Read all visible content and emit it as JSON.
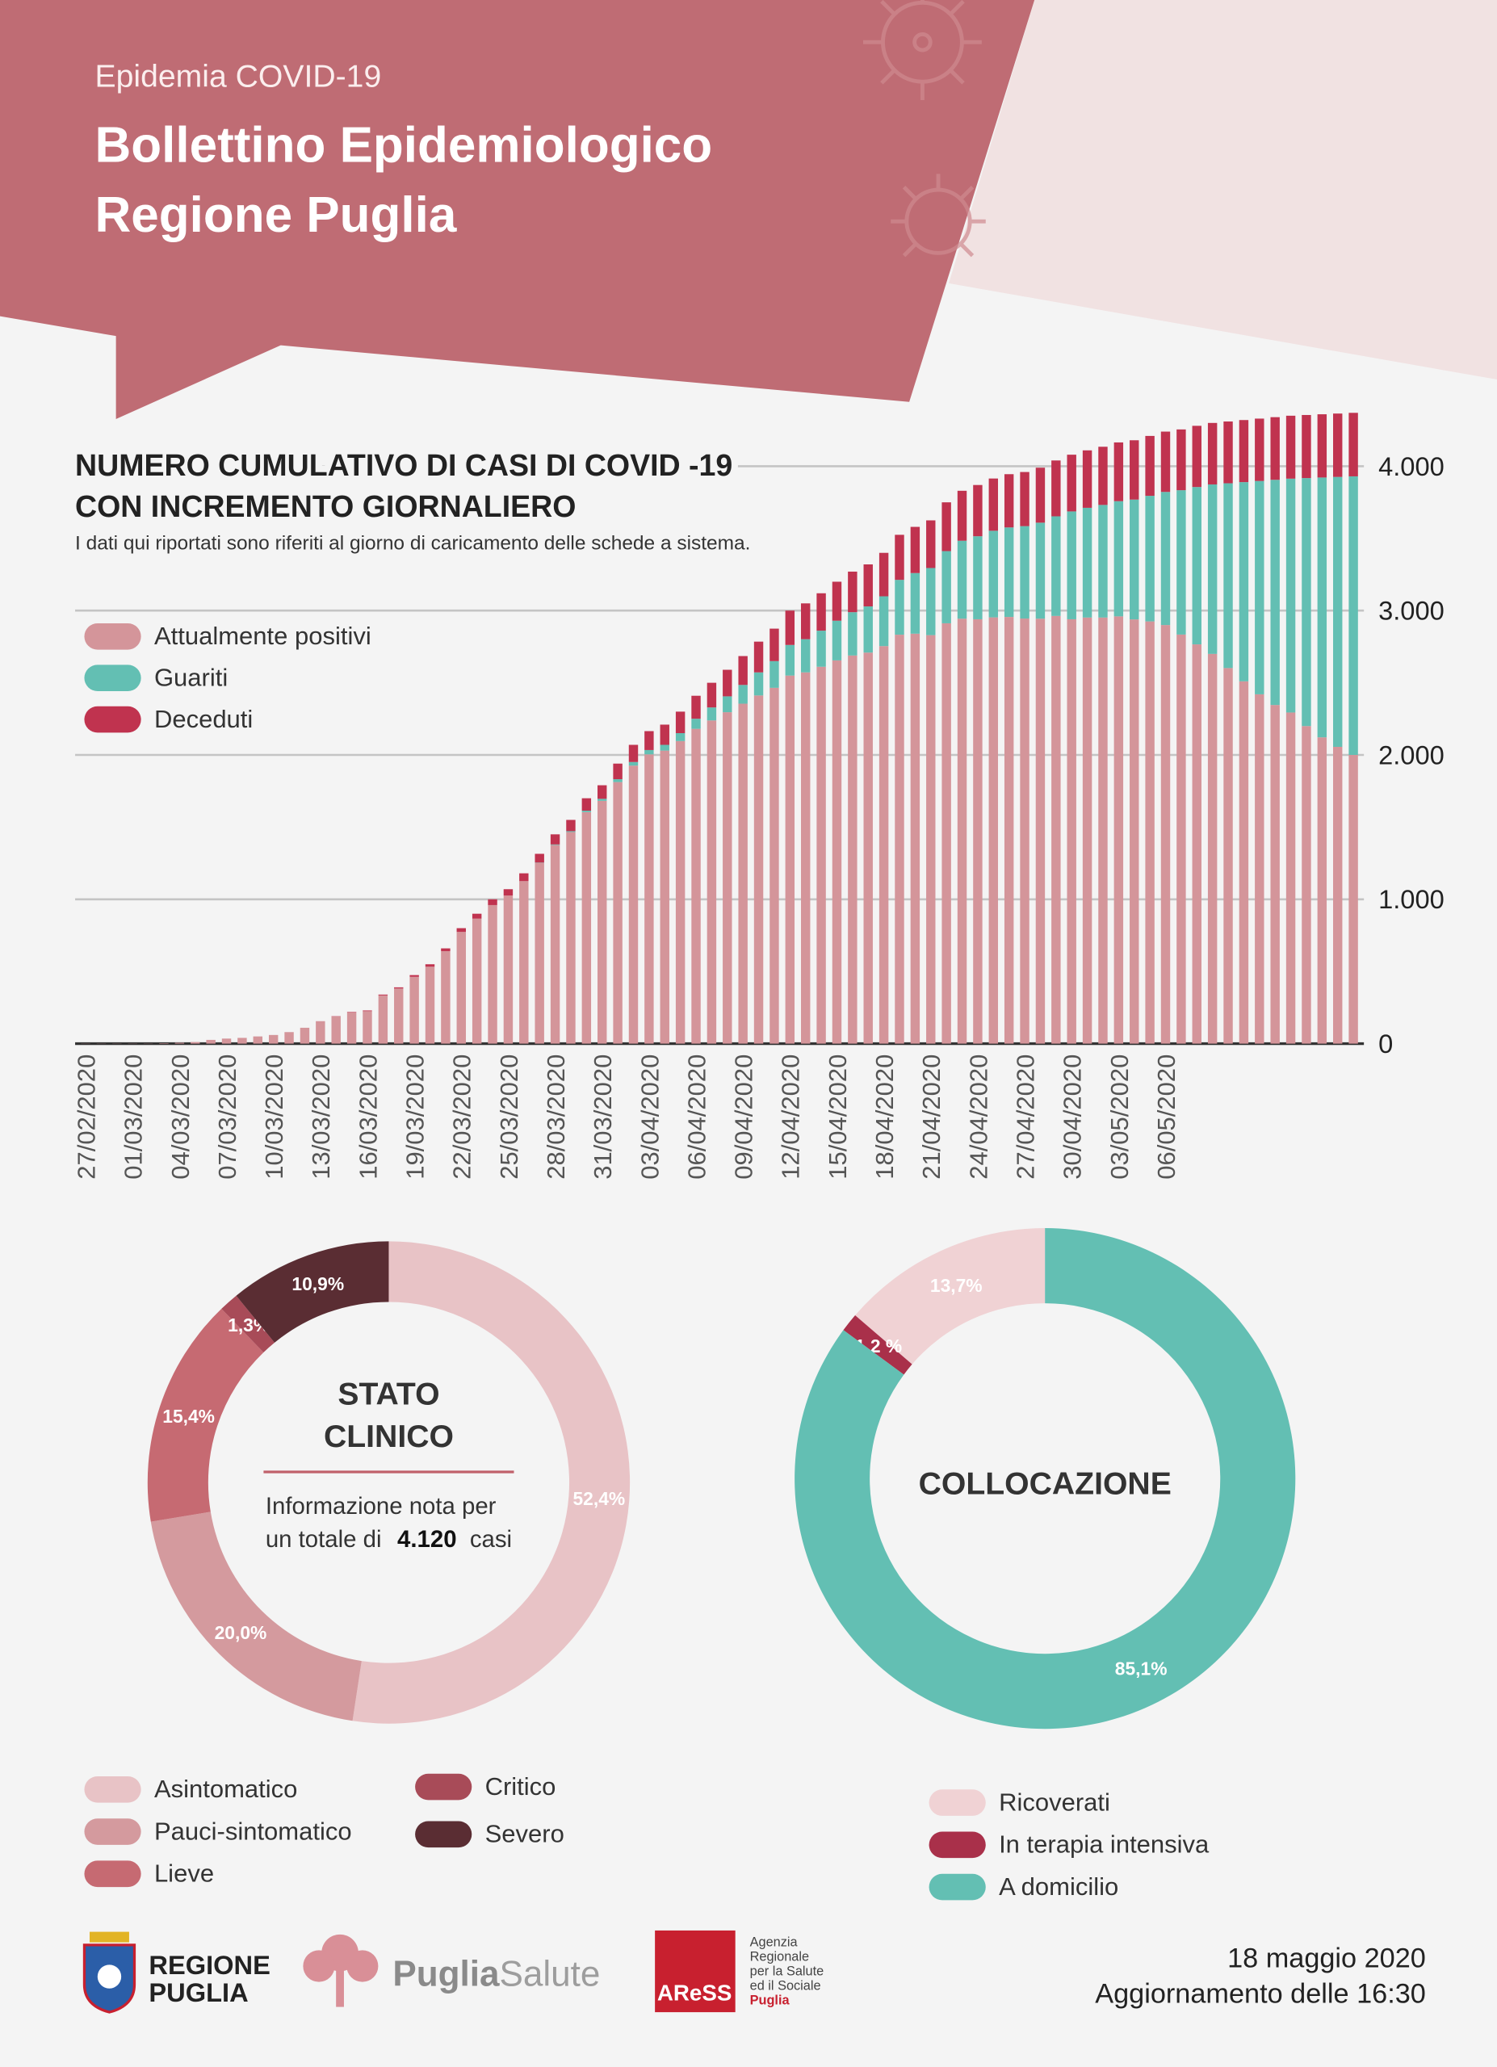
{
  "header": {
    "kicker": "Epidemia COVID-19",
    "title": [
      "Bollettino Epidemiologico",
      "Regione Puglia"
    ]
  },
  "chart_data": [
    {
      "type": "bar",
      "stacked": true,
      "title": [
        "NUMERO CUMULATIVO DI CASI DI COVID -19",
        "CON INCREMENTO GIORNALIERO"
      ],
      "subtitle": "I dati qui riportati sono riferiti al giorno di caricamento delle schede a sistema.",
      "categories": [
        "27/02/2020",
        null,
        null,
        "01/03/2020",
        null,
        null,
        "04/03/2020",
        null,
        null,
        "07/03/2020",
        null,
        null,
        "10/03/2020",
        null,
        null,
        "13/03/2020",
        null,
        null,
        "16/03/2020",
        null,
        null,
        "19/03/2020",
        null,
        null,
        "22/03/2020",
        null,
        null,
        "25/03/2020",
        null,
        null,
        "28/03/2020",
        null,
        null,
        "31/03/2020",
        null,
        null,
        "03/04/2020",
        null,
        null,
        "06/04/2020",
        null,
        null,
        "09/04/2020",
        null,
        null,
        "12/04/2020",
        null,
        null,
        "15/04/2020",
        null,
        null,
        "18/04/2020",
        null,
        null,
        "21/04/2020",
        null,
        null,
        "24/04/2020",
        null,
        null,
        "27/04/2020",
        null,
        null,
        "30/04/2020",
        null,
        null,
        "03/05/2020",
        null,
        null,
        "06/05/2020",
        null,
        null,
        null,
        null,
        null,
        null,
        null,
        null,
        null,
        null,
        null,
        null
      ],
      "series": [
        {
          "name": "Attualmente positivi",
          "color": "#d4959a",
          "values": [
            1,
            1,
            1,
            1,
            1,
            3,
            6,
            11,
            26,
            35,
            40,
            50,
            60,
            80,
            110,
            154,
            188,
            217,
            225,
            334,
            382,
            463,
            533,
            641,
            774,
            866,
            960,
            1026,
            1126,
            1252,
            1376,
            1466,
            1604,
            1682,
            1812,
            1926,
            2004,
            2030,
            2096,
            2181,
            2239,
            2296,
            2355,
            2412,
            2465,
            2550,
            2572,
            2611,
            2655,
            2689,
            2709,
            2754,
            2833,
            2840,
            2830,
            2912,
            2944,
            2940,
            2953,
            2956,
            2945,
            2944,
            2963,
            2940,
            2952,
            2952,
            2960,
            2939,
            2925,
            2900,
            2834,
            2766,
            2700,
            2602,
            2510,
            2420,
            2346,
            2294,
            2200,
            2122,
            2056,
            2000
          ]
        },
        {
          "name": "Guariti",
          "color": "#63bfb3",
          "values": [
            0,
            0,
            0,
            0,
            0,
            0,
            0,
            0,
            0,
            0,
            0,
            0,
            0,
            0,
            0,
            0,
            0,
            0,
            0,
            0,
            0,
            0,
            0,
            0,
            0,
            0,
            0,
            0,
            0,
            2,
            4,
            6,
            10,
            14,
            20,
            25,
            30,
            40,
            55,
            70,
            90,
            110,
            130,
            160,
            185,
            212,
            230,
            250,
            275,
            300,
            320,
            345,
            380,
            420,
            465,
            500,
            540,
            575,
            600,
            620,
            640,
            665,
            690,
            747,
            760,
            780,
            798,
            830,
            870,
            922,
            1000,
            1090,
            1174,
            1280,
            1380,
            1478,
            1560,
            1620,
            1718,
            1800,
            1870,
            1930
          ]
        },
        {
          "name": "Deceduti",
          "color": "#c0334f",
          "values": [
            0,
            0,
            0,
            0,
            0,
            0,
            0,
            0,
            0,
            0,
            0,
            0,
            0,
            0,
            0,
            1,
            2,
            3,
            5,
            6,
            8,
            12,
            17,
            19,
            26,
            34,
            40,
            44,
            54,
            61,
            70,
            78,
            86,
            94,
            108,
            119,
            131,
            140,
            149,
            159,
            171,
            184,
            200,
            213,
            225,
            238,
            248,
            259,
            270,
            281,
            291,
            301,
            312,
            320,
            330,
            338,
            346,
            355,
            362,
            369,
            375,
            381,
            387,
            393,
            398,
            403,
            407,
            411,
            415,
            418,
            421,
            424,
            426,
            428,
            430,
            432,
            434,
            436,
            437,
            438,
            439,
            440
          ]
        }
      ],
      "ylim": [
        0,
        4400
      ],
      "yticks": [
        0,
        {
          "value": 1000,
          "label": "1.000"
        },
        {
          "value": 2000,
          "label": "2.000"
        },
        {
          "value": 3000,
          "label": "3.000"
        },
        {
          "value": 4000,
          "label": "4.000"
        }
      ],
      "grid": true,
      "legend": "upper left"
    },
    {
      "type": "donut",
      "title": [
        "STATO",
        "CLINICO"
      ],
      "note": [
        "Informazione nota per",
        "un totale di"
      ],
      "total": "4.120",
      "total_unit": "casi",
      "direction": "clockwise",
      "categories": [
        "Asintomatico",
        "Pauci-sintomatico",
        "Lieve",
        "Critico",
        "Severo"
      ],
      "values": [
        52.4,
        20.0,
        15.4,
        1.3,
        10.9
      ],
      "value_labels": [
        "52,4%",
        "20,0%",
        "15,4%",
        "1,3%",
        "10,9%"
      ],
      "colors": [
        "#e8c3c6",
        "#d49a9e",
        "#c66a72",
        "#a84b58",
        "#5a2d33"
      ]
    },
    {
      "type": "donut",
      "title": [
        "COLLOCAZIONE"
      ],
      "direction": "counterclockwise",
      "categories": [
        "Ricoverati",
        "In terapia intensiva",
        "A domicilio"
      ],
      "values": [
        13.7,
        1.2,
        85.1
      ],
      "value_labels": [
        "13,7%",
        "1,2 %",
        "85,1%"
      ],
      "colors": [
        "#f0d2d4",
        "#a9304a",
        "#63bfb3"
      ]
    }
  ],
  "footer": {
    "regione": [
      "REGIONE",
      "PUGLIA"
    ],
    "puglia_salute": [
      "Puglia",
      "Salute"
    ],
    "aress": "AReSS",
    "aress_text": [
      "Agenzia",
      "Regionale",
      "per la Salute",
      "ed il Sociale",
      "Puglia"
    ],
    "date": "18 maggio 2020",
    "update": "Aggiornamento delle 16:30"
  }
}
